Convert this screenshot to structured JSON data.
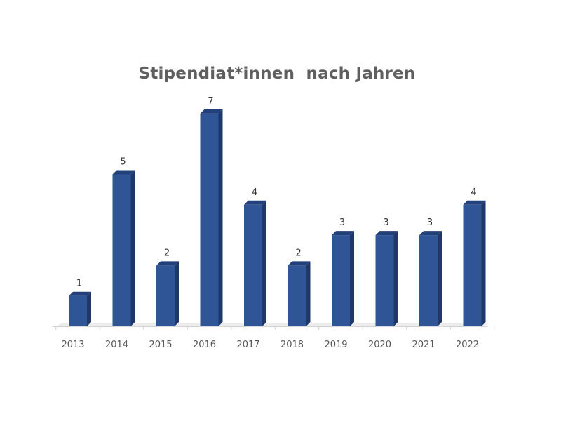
{
  "chart_data": {
    "type": "bar",
    "title": "Stipendiat*innen  nach Jahren",
    "categories": [
      "2013",
      "2014",
      "2015",
      "2016",
      "2017",
      "2018",
      "2019",
      "2020",
      "2021",
      "2022"
    ],
    "values": [
      1,
      5,
      2,
      7,
      4,
      2,
      3,
      3,
      3,
      4
    ],
    "data_labels": [
      "1",
      "5",
      "2",
      "7",
      "4",
      "2",
      "3",
      "3",
      "3",
      "4"
    ],
    "xlabel": "",
    "ylabel": "",
    "ylim": [
      0,
      7
    ],
    "grid": false,
    "legend": "none",
    "style": "3d-column",
    "colors": {
      "bar_front": "#2f5597",
      "bar_side": "#1f3868",
      "bar_top": "#23407a",
      "baseline": "#d0d0d0"
    }
  }
}
